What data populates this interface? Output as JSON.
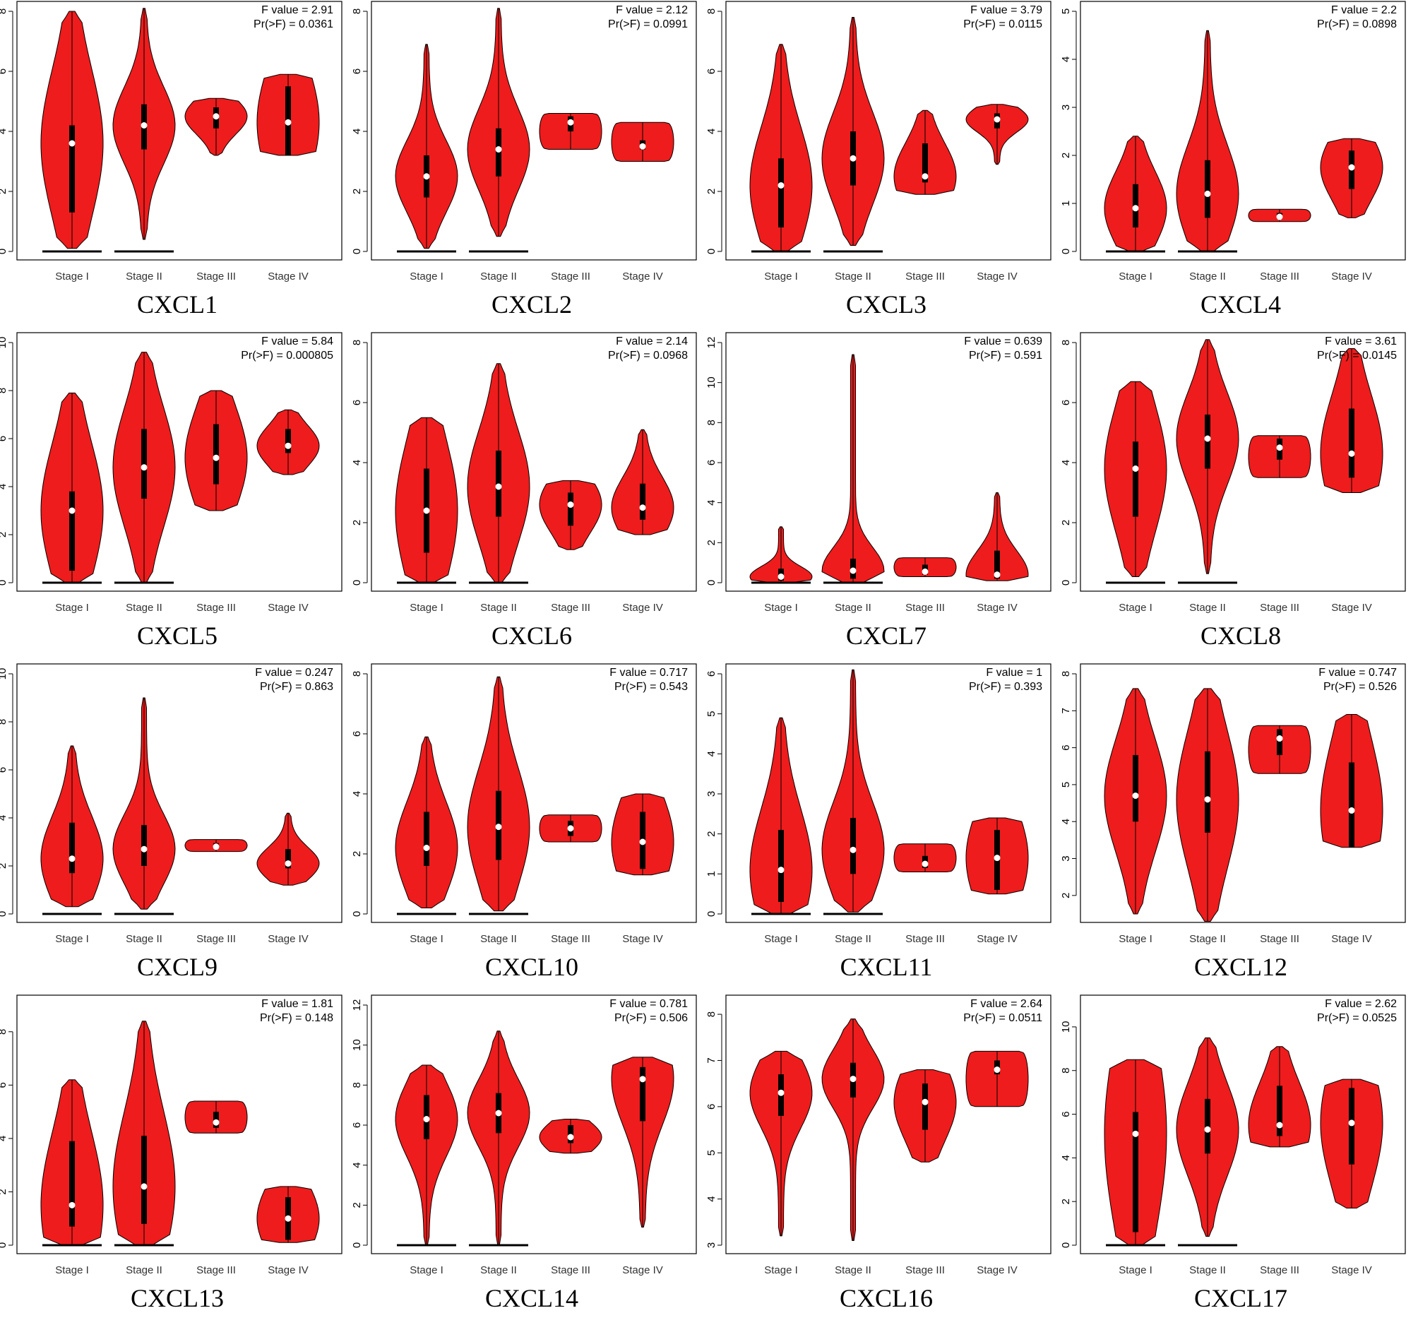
{
  "colors": {
    "violin_fill": "#ee1c1c",
    "outline": "#000000",
    "median": "#ffffff"
  },
  "stage_labels": [
    "Stage I",
    "Stage II",
    "Stage III",
    "Stage IV"
  ],
  "chart_data": [
    {
      "type": "violin",
      "gene": "CXCL1",
      "f_label": "F value = 2.91",
      "p_label": "Pr(>F) = 0.0361",
      "ylim": [
        0,
        8
      ],
      "yticks": [
        0,
        2,
        4,
        6,
        8
      ],
      "stages": [
        {
          "min": 0.1,
          "max": 8.0,
          "q1": 1.3,
          "median": 3.6,
          "q3": 4.2,
          "zero_line": true
        },
        {
          "min": 0.4,
          "max": 8.1,
          "q1": 3.4,
          "median": 4.2,
          "q3": 4.9,
          "zero_line": true
        },
        {
          "min": 3.2,
          "max": 5.1,
          "q1": 4.1,
          "median": 4.5,
          "q3": 4.8,
          "zero_line": false
        },
        {
          "min": 3.2,
          "max": 5.9,
          "q1": 3.2,
          "median": 4.3,
          "q3": 5.5,
          "zero_line": false
        }
      ]
    },
    {
      "type": "violin",
      "gene": "CXCL2",
      "f_label": "F value = 2.12",
      "p_label": "Pr(>F) = 0.0991",
      "ylim": [
        0,
        8
      ],
      "yticks": [
        0,
        2,
        4,
        6,
        8
      ],
      "stages": [
        {
          "min": 0.1,
          "max": 6.9,
          "q1": 1.8,
          "median": 2.5,
          "q3": 3.2,
          "zero_line": true
        },
        {
          "min": 0.5,
          "max": 8.1,
          "q1": 2.5,
          "median": 3.4,
          "q3": 4.1,
          "zero_line": true
        },
        {
          "min": 3.4,
          "max": 4.6,
          "q1": 4.0,
          "median": 4.3,
          "q3": 4.5,
          "zero_line": false
        },
        {
          "min": 3.0,
          "max": 4.3,
          "q1": 3.4,
          "median": 3.5,
          "q3": 3.7,
          "zero_line": false
        }
      ]
    },
    {
      "type": "violin",
      "gene": "CXCL3",
      "f_label": "F value = 3.79",
      "p_label": "Pr(>F) = 0.0115",
      "ylim": [
        0,
        8
      ],
      "yticks": [
        0,
        2,
        4,
        6,
        8
      ],
      "stages": [
        {
          "min": 0.0,
          "max": 6.9,
          "q1": 0.8,
          "median": 2.2,
          "q3": 3.1,
          "zero_line": true
        },
        {
          "min": 0.2,
          "max": 7.8,
          "q1": 2.2,
          "median": 3.1,
          "q3": 4.0,
          "zero_line": true
        },
        {
          "min": 1.9,
          "max": 4.7,
          "q1": 2.3,
          "median": 2.5,
          "q3": 3.6,
          "zero_line": false
        },
        {
          "min": 2.9,
          "max": 4.9,
          "q1": 4.1,
          "median": 4.4,
          "q3": 4.6,
          "zero_line": false
        }
      ]
    },
    {
      "type": "violin",
      "gene": "CXCL4",
      "f_label": "F value = 2.2",
      "p_label": "Pr(>F) = 0.0898",
      "ylim": [
        0,
        5
      ],
      "yticks": [
        0,
        1,
        2,
        3,
        4,
        5
      ],
      "stages": [
        {
          "min": 0.0,
          "max": 2.4,
          "q1": 0.5,
          "median": 0.9,
          "q3": 1.4,
          "zero_line": true
        },
        {
          "min": 0.0,
          "max": 4.6,
          "q1": 0.7,
          "median": 1.2,
          "q3": 1.9,
          "zero_line": true
        },
        {
          "min": 0.62,
          "max": 0.88,
          "q1": 0.68,
          "median": 0.72,
          "q3": 0.8,
          "zero_line": false
        },
        {
          "min": 0.7,
          "max": 2.35,
          "q1": 1.3,
          "median": 1.75,
          "q3": 2.1,
          "zero_line": false
        }
      ]
    },
    {
      "type": "violin",
      "gene": "CXCL5",
      "f_label": "F value = 5.84",
      "p_label": "Pr(>F) = 0.000805",
      "ylim": [
        0,
        10
      ],
      "yticks": [
        0,
        2,
        4,
        6,
        8,
        10
      ],
      "stages": [
        {
          "min": 0.0,
          "max": 7.9,
          "q1": 0.5,
          "median": 3.0,
          "q3": 3.8,
          "zero_line": true
        },
        {
          "min": 0.0,
          "max": 9.6,
          "q1": 3.5,
          "median": 4.8,
          "q3": 6.4,
          "zero_line": true
        },
        {
          "min": 3.0,
          "max": 8.0,
          "q1": 4.1,
          "median": 5.2,
          "q3": 6.6,
          "zero_line": false
        },
        {
          "min": 4.5,
          "max": 7.2,
          "q1": 5.4,
          "median": 5.7,
          "q3": 6.4,
          "zero_line": false
        }
      ]
    },
    {
      "type": "violin",
      "gene": "CXCL6",
      "f_label": "F value = 2.14",
      "p_label": "Pr(>F) = 0.0968",
      "ylim": [
        0,
        8
      ],
      "yticks": [
        0,
        2,
        4,
        6,
        8
      ],
      "stages": [
        {
          "min": 0.0,
          "max": 5.5,
          "q1": 1.0,
          "median": 2.4,
          "q3": 3.8,
          "zero_line": true
        },
        {
          "min": 0.0,
          "max": 7.3,
          "q1": 2.2,
          "median": 3.2,
          "q3": 4.4,
          "zero_line": true
        },
        {
          "min": 1.1,
          "max": 3.4,
          "q1": 1.9,
          "median": 2.6,
          "q3": 3.0,
          "zero_line": false
        },
        {
          "min": 1.6,
          "max": 5.1,
          "q1": 2.1,
          "median": 2.5,
          "q3": 3.3,
          "zero_line": false
        }
      ]
    },
    {
      "type": "violin",
      "gene": "CXCL7",
      "f_label": "F value = 0.639",
      "p_label": "Pr(>F) = 0.591",
      "ylim": [
        0,
        12
      ],
      "yticks": [
        0,
        2,
        4,
        6,
        8,
        10,
        12
      ],
      "stages": [
        {
          "min": 0.0,
          "max": 2.8,
          "q1": 0.1,
          "median": 0.3,
          "q3": 0.7,
          "zero_line": true
        },
        {
          "min": 0.0,
          "max": 11.4,
          "q1": 0.2,
          "median": 0.6,
          "q3": 1.2,
          "zero_line": true
        },
        {
          "min": 0.3,
          "max": 1.25,
          "q1": 0.4,
          "median": 0.55,
          "q3": 0.9,
          "zero_line": false
        },
        {
          "min": 0.1,
          "max": 4.5,
          "q1": 0.2,
          "median": 0.4,
          "q3": 1.6,
          "zero_line": false
        }
      ]
    },
    {
      "type": "violin",
      "gene": "CXCL8",
      "f_label": "F value = 3.61",
      "p_label": "Pr(>F) = 0.0145",
      "ylim": [
        0,
        8
      ],
      "yticks": [
        0,
        2,
        4,
        6,
        8
      ],
      "stages": [
        {
          "min": 0.2,
          "max": 6.7,
          "q1": 2.2,
          "median": 3.8,
          "q3": 4.7,
          "zero_line": true
        },
        {
          "min": 0.3,
          "max": 8.1,
          "q1": 3.8,
          "median": 4.8,
          "q3": 5.6,
          "zero_line": true
        },
        {
          "min": 3.5,
          "max": 4.9,
          "q1": 4.1,
          "median": 4.5,
          "q3": 4.8,
          "zero_line": false
        },
        {
          "min": 3.0,
          "max": 7.8,
          "q1": 3.5,
          "median": 4.3,
          "q3": 5.8,
          "zero_line": false
        }
      ]
    },
    {
      "type": "violin",
      "gene": "CXCL9",
      "f_label": "F value = 0.247",
      "p_label": "Pr(>F) = 0.863",
      "ylim": [
        0,
        10
      ],
      "yticks": [
        0,
        2,
        4,
        6,
        8,
        10
      ],
      "stages": [
        {
          "min": 0.3,
          "max": 7.0,
          "q1": 1.7,
          "median": 2.3,
          "q3": 3.8,
          "zero_line": true
        },
        {
          "min": 0.2,
          "max": 9.0,
          "q1": 2.0,
          "median": 2.7,
          "q3": 3.7,
          "zero_line": true
        },
        {
          "min": 2.6,
          "max": 3.1,
          "q1": 2.75,
          "median": 2.8,
          "q3": 2.95,
          "zero_line": false
        },
        {
          "min": 1.2,
          "max": 4.2,
          "q1": 1.9,
          "median": 2.1,
          "q3": 2.7,
          "zero_line": false
        }
      ]
    },
    {
      "type": "violin",
      "gene": "CXCL10",
      "f_label": "F value = 0.717",
      "p_label": "Pr(>F) = 0.543",
      "ylim": [
        0,
        8
      ],
      "yticks": [
        0,
        2,
        4,
        6,
        8
      ],
      "stages": [
        {
          "min": 0.2,
          "max": 5.9,
          "q1": 1.6,
          "median": 2.2,
          "q3": 3.4,
          "zero_line": true
        },
        {
          "min": 0.1,
          "max": 7.9,
          "q1": 1.8,
          "median": 2.9,
          "q3": 4.1,
          "zero_line": true
        },
        {
          "min": 2.4,
          "max": 3.3,
          "q1": 2.6,
          "median": 2.85,
          "q3": 3.1,
          "zero_line": false
        },
        {
          "min": 1.3,
          "max": 4.0,
          "q1": 1.5,
          "median": 2.4,
          "q3": 3.4,
          "zero_line": false
        }
      ]
    },
    {
      "type": "violin",
      "gene": "CXCL11",
      "f_label": "F value = 1",
      "p_label": "Pr(>F) = 0.393",
      "ylim": [
        0,
        6
      ],
      "yticks": [
        0,
        1,
        2,
        3,
        4,
        5,
        6
      ],
      "stages": [
        {
          "min": 0.0,
          "max": 4.9,
          "q1": 0.3,
          "median": 1.1,
          "q3": 2.1,
          "zero_line": true
        },
        {
          "min": 0.05,
          "max": 6.1,
          "q1": 1.0,
          "median": 1.6,
          "q3": 2.4,
          "zero_line": true
        },
        {
          "min": 1.05,
          "max": 1.75,
          "q1": 1.15,
          "median": 1.25,
          "q3": 1.45,
          "zero_line": false
        },
        {
          "min": 0.5,
          "max": 2.4,
          "q1": 0.6,
          "median": 1.4,
          "q3": 2.1,
          "zero_line": false
        }
      ]
    },
    {
      "type": "violin",
      "gene": "CXCL12",
      "f_label": "F value = 0.747",
      "p_label": "Pr(>F) = 0.526",
      "ylim": [
        1.5,
        8
      ],
      "yticks": [
        2,
        3,
        4,
        5,
        6,
        7,
        8
      ],
      "stages": [
        {
          "min": 1.5,
          "max": 7.6,
          "q1": 4.0,
          "median": 4.7,
          "q3": 5.8,
          "zero_line": false
        },
        {
          "min": 1.3,
          "max": 7.6,
          "q1": 3.7,
          "median": 4.6,
          "q3": 5.9,
          "zero_line": false
        },
        {
          "min": 5.3,
          "max": 6.6,
          "q1": 5.8,
          "median": 6.25,
          "q3": 6.5,
          "zero_line": false
        },
        {
          "min": 3.3,
          "max": 6.9,
          "q1": 3.3,
          "median": 4.3,
          "q3": 5.6,
          "zero_line": false
        }
      ]
    },
    {
      "type": "violin",
      "gene": "CXCL13",
      "f_label": "F value = 1.81",
      "p_label": "Pr(>F) = 0.148",
      "ylim": [
        0,
        9
      ],
      "yticks": [
        0,
        2,
        4,
        6,
        8
      ],
      "stages": [
        {
          "min": 0.0,
          "max": 6.2,
          "q1": 0.7,
          "median": 1.5,
          "q3": 3.9,
          "zero_line": true
        },
        {
          "min": 0.0,
          "max": 8.4,
          "q1": 0.8,
          "median": 2.2,
          "q3": 4.1,
          "zero_line": true
        },
        {
          "min": 4.2,
          "max": 5.4,
          "q1": 4.4,
          "median": 4.6,
          "q3": 5.0,
          "zero_line": false
        },
        {
          "min": 0.1,
          "max": 2.2,
          "q1": 0.2,
          "median": 1.0,
          "q3": 1.8,
          "zero_line": false
        }
      ]
    },
    {
      "type": "violin",
      "gene": "CXCL14",
      "f_label": "F value = 0.781",
      "p_label": "Pr(>F) = 0.506",
      "ylim": [
        0,
        12
      ],
      "yticks": [
        0,
        2,
        4,
        6,
        8,
        10,
        12
      ],
      "stages": [
        {
          "min": 0.0,
          "max": 9.0,
          "q1": 5.3,
          "median": 6.3,
          "q3": 7.5,
          "zero_line": true
        },
        {
          "min": 0.0,
          "max": 10.7,
          "q1": 5.6,
          "median": 6.6,
          "q3": 7.6,
          "zero_line": true
        },
        {
          "min": 4.6,
          "max": 6.3,
          "q1": 5.1,
          "median": 5.4,
          "q3": 6.0,
          "zero_line": false
        },
        {
          "min": 0.9,
          "max": 9.4,
          "q1": 6.2,
          "median": 8.3,
          "q3": 8.9,
          "zero_line": false
        }
      ]
    },
    {
      "type": "violin",
      "gene": "CXCL16",
      "f_label": "F value = 2.64",
      "p_label": "Pr(>F) = 0.0511",
      "ylim": [
        3,
        8.2
      ],
      "yticks": [
        3,
        4,
        5,
        6,
        7,
        8
      ],
      "stages": [
        {
          "min": 3.2,
          "max": 7.2,
          "q1": 5.8,
          "median": 6.3,
          "q3": 6.7,
          "zero_line": false
        },
        {
          "min": 3.1,
          "max": 7.9,
          "q1": 6.2,
          "median": 6.6,
          "q3": 6.95,
          "zero_line": false
        },
        {
          "min": 4.8,
          "max": 6.8,
          "q1": 5.5,
          "median": 6.1,
          "q3": 6.5,
          "zero_line": false
        },
        {
          "min": 6.0,
          "max": 7.2,
          "q1": 6.7,
          "median": 6.8,
          "q3": 7.0,
          "zero_line": false
        }
      ]
    },
    {
      "type": "violin",
      "gene": "CXCL17",
      "f_label": "F value = 2.62",
      "p_label": "Pr(>F) = 0.0525",
      "ylim": [
        0,
        11
      ],
      "yticks": [
        0,
        2,
        4,
        6,
        8,
        10
      ],
      "stages": [
        {
          "min": 0.0,
          "max": 8.5,
          "q1": 0.6,
          "median": 5.1,
          "q3": 6.1,
          "zero_line": true
        },
        {
          "min": 0.4,
          "max": 9.5,
          "q1": 4.2,
          "median": 5.3,
          "q3": 6.7,
          "zero_line": true
        },
        {
          "min": 4.5,
          "max": 9.1,
          "q1": 5.0,
          "median": 5.5,
          "q3": 7.3,
          "zero_line": false
        },
        {
          "min": 1.7,
          "max": 7.6,
          "q1": 3.7,
          "median": 5.6,
          "q3": 7.2,
          "zero_line": false
        }
      ]
    }
  ]
}
